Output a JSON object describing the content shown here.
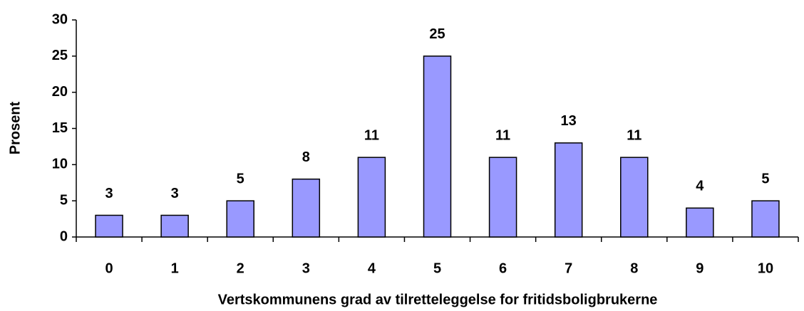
{
  "chart_data": {
    "type": "bar",
    "x_label": "Vertskommunens grad av tilretteleggelse for fritidsboligbrukerne",
    "y_label": "Prosent",
    "categories": [
      "0",
      "1",
      "2",
      "3",
      "4",
      "5",
      "6",
      "7",
      "8",
      "9",
      "10"
    ],
    "values": [
      3,
      3,
      5,
      8,
      11,
      25,
      11,
      13,
      11,
      4,
      5
    ],
    "color": "#9999ff",
    "ylim": [
      0,
      30
    ],
    "yticks": [
      0,
      5,
      10,
      15,
      20,
      25,
      30
    ],
    "grid": false,
    "data_labels": true
  }
}
